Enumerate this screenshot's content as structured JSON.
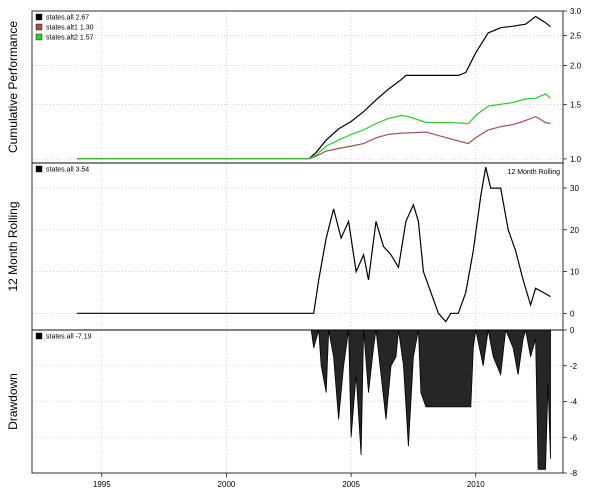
{
  "chart_data": [
    {
      "type": "line",
      "panel": "cumulative-performance",
      "ylabel": "Cumulative Performance",
      "y_scale": "log",
      "ylim": [
        0.97,
        3.0
      ],
      "y_ticks": [
        1.0,
        1.5,
        2.0,
        2.5,
        3.0
      ],
      "y_tick_labels": [
        "1.0",
        "1.5",
        "2.0",
        "2.5",
        "3.0"
      ],
      "legend_position": "top-left",
      "legend": [
        "states.all 2.67",
        "states.alt1 1.30",
        "states.alt2 1.57"
      ],
      "series": [
        {
          "name": "states.all",
          "color": "#000000",
          "points": [
            [
              1994.0,
              1.0
            ],
            [
              2003.3,
              1.0
            ],
            [
              2003.6,
              1.05
            ],
            [
              2004.0,
              1.15
            ],
            [
              2004.5,
              1.25
            ],
            [
              2005.0,
              1.32
            ],
            [
              2005.5,
              1.42
            ],
            [
              2006.0,
              1.55
            ],
            [
              2006.5,
              1.68
            ],
            [
              2007.0,
              1.8
            ],
            [
              2007.2,
              1.86
            ],
            [
              2008.5,
              1.86
            ],
            [
              2009.3,
              1.86
            ],
            [
              2009.6,
              1.9
            ],
            [
              2010.0,
              2.2
            ],
            [
              2010.5,
              2.55
            ],
            [
              2011.0,
              2.65
            ],
            [
              2011.5,
              2.68
            ],
            [
              2012.0,
              2.72
            ],
            [
              2012.4,
              2.88
            ],
            [
              2012.8,
              2.75
            ],
            [
              2013.0,
              2.67
            ]
          ]
        },
        {
          "name": "states.alt1",
          "color": "#a0524d",
          "points": [
            [
              1994.0,
              1.0
            ],
            [
              2003.3,
              1.0
            ],
            [
              2003.6,
              1.02
            ],
            [
              2004.0,
              1.06
            ],
            [
              2004.5,
              1.08
            ],
            [
              2005.0,
              1.1
            ],
            [
              2005.5,
              1.12
            ],
            [
              2006.0,
              1.17
            ],
            [
              2006.5,
              1.2
            ],
            [
              2007.0,
              1.21
            ],
            [
              2008.0,
              1.22
            ],
            [
              2009.0,
              1.16
            ],
            [
              2009.7,
              1.12
            ],
            [
              2010.0,
              1.17
            ],
            [
              2010.5,
              1.24
            ],
            [
              2011.0,
              1.27
            ],
            [
              2011.5,
              1.29
            ],
            [
              2012.0,
              1.33
            ],
            [
              2012.4,
              1.37
            ],
            [
              2012.8,
              1.31
            ],
            [
              2013.0,
              1.3
            ]
          ]
        },
        {
          "name": "states.alt2",
          "color": "#2ecc2e",
          "points": [
            [
              1994.0,
              1.0
            ],
            [
              2003.3,
              1.0
            ],
            [
              2003.6,
              1.03
            ],
            [
              2004.0,
              1.1
            ],
            [
              2004.5,
              1.15
            ],
            [
              2005.0,
              1.2
            ],
            [
              2005.5,
              1.24
            ],
            [
              2006.0,
              1.3
            ],
            [
              2006.5,
              1.35
            ],
            [
              2007.0,
              1.38
            ],
            [
              2007.3,
              1.37
            ],
            [
              2008.0,
              1.31
            ],
            [
              2009.0,
              1.31
            ],
            [
              2009.7,
              1.3
            ],
            [
              2010.0,
              1.38
            ],
            [
              2010.5,
              1.48
            ],
            [
              2011.0,
              1.5
            ],
            [
              2011.5,
              1.52
            ],
            [
              2012.0,
              1.56
            ],
            [
              2012.4,
              1.57
            ],
            [
              2012.8,
              1.62
            ],
            [
              2013.0,
              1.57
            ]
          ]
        }
      ]
    },
    {
      "type": "line",
      "panel": "12-month-rolling",
      "ylabel": "12 Month Rolling",
      "annotation": "12 Month Rolling",
      "ylim": [
        -4,
        36
      ],
      "y_ticks": [
        0,
        10,
        20,
        30
      ],
      "y_tick_labels": [
        "0",
        "10",
        "20",
        "30"
      ],
      "legend_position": "top-left",
      "legend": [
        "states.all 3.54"
      ],
      "series": [
        {
          "name": "states.all",
          "color": "#000000",
          "points": [
            [
              1994.0,
              0
            ],
            [
              2003.5,
              0
            ],
            [
              2003.7,
              8
            ],
            [
              2004.0,
              18
            ],
            [
              2004.3,
              25
            ],
            [
              2004.6,
              18
            ],
            [
              2004.9,
              22
            ],
            [
              2005.2,
              10
            ],
            [
              2005.5,
              14
            ],
            [
              2005.7,
              8
            ],
            [
              2006.0,
              22
            ],
            [
              2006.3,
              16
            ],
            [
              2006.6,
              14
            ],
            [
              2006.9,
              11
            ],
            [
              2007.2,
              22
            ],
            [
              2007.5,
              26
            ],
            [
              2007.7,
              22
            ],
            [
              2007.9,
              10
            ],
            [
              2008.2,
              5
            ],
            [
              2008.5,
              0
            ],
            [
              2008.8,
              -2
            ],
            [
              2009.0,
              0
            ],
            [
              2009.3,
              0
            ],
            [
              2009.6,
              5
            ],
            [
              2009.9,
              15
            ],
            [
              2010.2,
              28
            ],
            [
              2010.4,
              35
            ],
            [
              2010.6,
              30
            ],
            [
              2011.0,
              30
            ],
            [
              2011.3,
              20
            ],
            [
              2011.6,
              15
            ],
            [
              2011.9,
              8
            ],
            [
              2012.2,
              2
            ],
            [
              2012.4,
              6
            ],
            [
              2012.7,
              5
            ],
            [
              2013.0,
              4
            ]
          ]
        }
      ]
    },
    {
      "type": "area",
      "panel": "drawdown",
      "ylabel": "Drawdown",
      "ylim": [
        -8,
        0
      ],
      "y_ticks": [
        -8,
        -6,
        -4,
        -2,
        0
      ],
      "y_tick_labels": [
        "-8",
        "-6",
        "-4",
        "-2",
        "0"
      ],
      "legend_position": "top-left",
      "legend": [
        "states.all -7.19"
      ],
      "series": [
        {
          "name": "states.all",
          "color": "#000000",
          "points": [
            [
              1994.0,
              0
            ],
            [
              2003.4,
              0
            ],
            [
              2003.5,
              -1.0
            ],
            [
              2003.7,
              0
            ],
            [
              2003.8,
              -2.0
            ],
            [
              2004.0,
              -3.5
            ],
            [
              2004.1,
              0
            ],
            [
              2004.3,
              -1.5
            ],
            [
              2004.5,
              -5.0
            ],
            [
              2004.7,
              -2.0
            ],
            [
              2004.9,
              0
            ],
            [
              2005.0,
              -6.0
            ],
            [
              2005.2,
              -2.5
            ],
            [
              2005.4,
              -7.0
            ],
            [
              2005.5,
              0
            ],
            [
              2005.7,
              -3.5
            ],
            [
              2005.9,
              -1.0
            ],
            [
              2006.0,
              0
            ],
            [
              2006.2,
              -2.5
            ],
            [
              2006.4,
              -5.0
            ],
            [
              2006.6,
              -2.0
            ],
            [
              2006.8,
              -1.5
            ],
            [
              2006.9,
              0
            ],
            [
              2007.1,
              -2.0
            ],
            [
              2007.3,
              -6.5
            ],
            [
              2007.5,
              -1.5
            ],
            [
              2007.7,
              0
            ],
            [
              2007.8,
              -3.5
            ],
            [
              2008.0,
              -4.3
            ],
            [
              2009.0,
              -4.3
            ],
            [
              2009.8,
              -4.3
            ],
            [
              2009.9,
              -1.0
            ],
            [
              2010.0,
              0
            ],
            [
              2010.3,
              -2.0
            ],
            [
              2010.5,
              0
            ],
            [
              2010.7,
              -1.5
            ],
            [
              2011.0,
              -2.5
            ],
            [
              2011.2,
              0
            ],
            [
              2011.5,
              -1.0
            ],
            [
              2011.7,
              -2.5
            ],
            [
              2011.9,
              -0.5
            ],
            [
              2012.0,
              0
            ],
            [
              2012.2,
              -1.5
            ],
            [
              2012.4,
              -0.5
            ],
            [
              2012.5,
              -7.8
            ],
            [
              2012.8,
              -7.8
            ],
            [
              2012.9,
              -3.0
            ],
            [
              2013.0,
              -7.2
            ]
          ]
        }
      ]
    }
  ],
  "x_axis": {
    "xlim": [
      1992.2,
      2013.5
    ],
    "ticks": [
      1995,
      2000,
      2005,
      2010
    ],
    "tick_labels": [
      "1995",
      "2000",
      "2005",
      "2010"
    ]
  },
  "grid": true
}
